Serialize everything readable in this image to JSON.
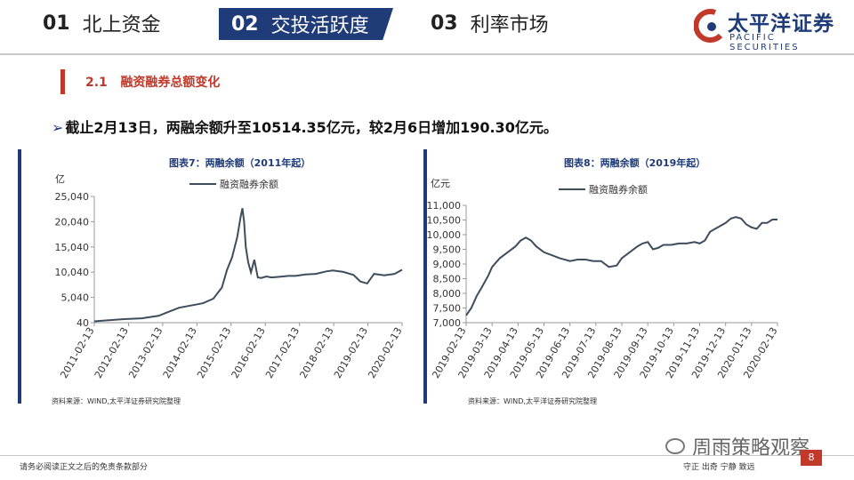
{
  "nav": [
    {
      "num": "01",
      "label": "北上资金"
    },
    {
      "num": "02",
      "label": "交投活跃度"
    },
    {
      "num": "03",
      "label": "利率市场"
    }
  ],
  "logo": {
    "cn": "太平洋证券",
    "en": "PACIFIC SECURITIES"
  },
  "section": {
    "number": "2.1",
    "title": "融资融券总额变化"
  },
  "bullet": "截止2月13日，两融余额升至10514.35亿元，较2月6日增加190.30亿元。",
  "footer": {
    "disclaimer": "请务必阅读正文之后的免责条款部分",
    "motto": "守正 出奇 宁静 致远",
    "page": "8",
    "watermark": "周雨策略观察"
  },
  "colors": {
    "navy": "#1f3c78",
    "red": "#c0392b",
    "line": "#3e4d5c"
  },
  "chart_data": [
    {
      "type": "line",
      "title": "图表7：两融余额（2011年起）",
      "unit": "亿",
      "legend": "融资融券余额",
      "source": "资料来源：WIND,太平洋证券研究院整理",
      "yticks": [
        "40",
        "5,040",
        "10,040",
        "15,040",
        "20,040",
        "25,040"
      ],
      "ylim": [
        40,
        25040
      ],
      "xticks": [
        "2011-02-13",
        "2012-02-13",
        "2013-02-13",
        "2014-02-13",
        "2015-02-13",
        "2016-02-13",
        "2017-02-13",
        "2018-02-13",
        "2019-02-13",
        "2020-02-13"
      ],
      "series": [
        {
          "name": "融资融券余额",
          "x": [
            2011.12,
            2011.5,
            2012.0,
            2012.5,
            2013.0,
            2013.3,
            2013.6,
            2014.0,
            2014.3,
            2014.6,
            2014.85,
            2015.0,
            2015.15,
            2015.3,
            2015.4,
            2015.45,
            2015.5,
            2015.55,
            2015.62,
            2015.7,
            2015.8,
            2015.9,
            2016.0,
            2016.15,
            2016.3,
            2016.5,
            2016.8,
            2017.0,
            2017.3,
            2017.6,
            2017.9,
            2018.1,
            2018.4,
            2018.7,
            2018.9,
            2019.1,
            2019.3,
            2019.6,
            2019.9,
            2020.12
          ],
          "y": [
            300,
            500,
            750,
            900,
            1400,
            2200,
            3000,
            3500,
            3900,
            4800,
            7000,
            10500,
            13000,
            17000,
            21000,
            22700,
            20000,
            15000,
            12000,
            10000,
            12500,
            9000,
            8900,
            9200,
            9000,
            9100,
            9300,
            9300,
            9600,
            9700,
            10200,
            10400,
            10100,
            9500,
            8200,
            7800,
            9700,
            9400,
            9700,
            10514
          ]
        }
      ]
    },
    {
      "type": "line",
      "title": "图表8：两融余额（2019年起）",
      "unit": "亿元",
      "legend": "融资融券余额",
      "source": "资料来源：WIND,太平洋证券研究院整理",
      "yticks": [
        "7,000",
        "7,500",
        "8,000",
        "8,500",
        "9,000",
        "9,500",
        "10,000",
        "10,500",
        "11,000"
      ],
      "ylim": [
        7000,
        11000
      ],
      "xticks": [
        "2019-02-13",
        "2019-03-13",
        "2019-04-13",
        "2019-05-13",
        "2019-06-13",
        "2019-07-13",
        "2019-08-13",
        "2019-09-13",
        "2019-10-13",
        "2019-11-13",
        "2019-12-13",
        "2020-01-13",
        "2020-02-13"
      ],
      "series": [
        {
          "name": "融资融券余额",
          "x": [
            0,
            0.2,
            0.4,
            0.6,
            0.85,
            1.0,
            1.3,
            1.6,
            1.9,
            2.1,
            2.3,
            2.5,
            2.7,
            3.0,
            3.3,
            3.6,
            4.0,
            4.3,
            4.6,
            4.9,
            5.2,
            5.5,
            5.8,
            6.0,
            6.3,
            6.6,
            6.8,
            7.0,
            7.2,
            7.4,
            7.6,
            7.9,
            8.2,
            8.5,
            8.8,
            9.0,
            9.2,
            9.4,
            9.6,
            9.8,
            10.0,
            10.2,
            10.4,
            10.6,
            10.8,
            11.0,
            11.2,
            11.4,
            11.6,
            11.8,
            12.0
          ],
          "y": [
            7250,
            7500,
            7900,
            8200,
            8600,
            8900,
            9200,
            9400,
            9600,
            9800,
            9900,
            9800,
            9600,
            9400,
            9300,
            9200,
            9100,
            9150,
            9150,
            9100,
            9100,
            8900,
            8950,
            9200,
            9400,
            9600,
            9700,
            9750,
            9500,
            9550,
            9650,
            9650,
            9700,
            9700,
            9750,
            9700,
            9800,
            10100,
            10200,
            10300,
            10400,
            10550,
            10600,
            10550,
            10350,
            10250,
            10200,
            10400,
            10400,
            10514,
            10514
          ]
        }
      ]
    }
  ]
}
